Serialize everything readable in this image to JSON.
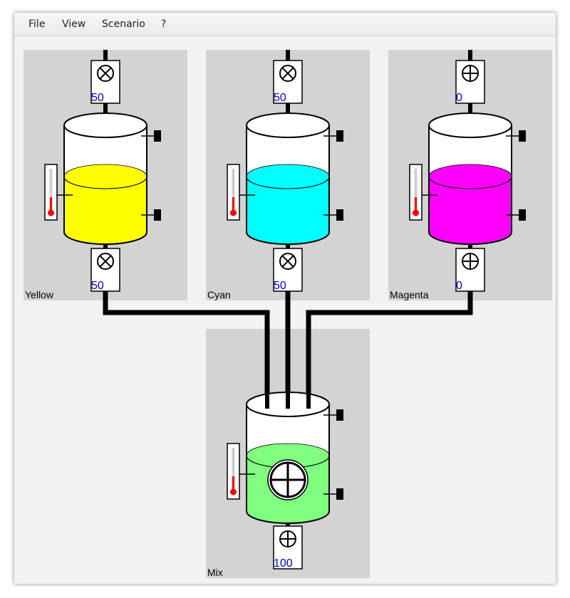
{
  "menu": {
    "file": "File",
    "view": "View",
    "scenario": "Scenario",
    "help": "?"
  },
  "units": {
    "yellow": {
      "label": "Yellow",
      "color": "#ffff00",
      "inlet_valve": {
        "state": "closed",
        "value": "50"
      },
      "outlet_valve": {
        "state": "closed",
        "value": "50"
      }
    },
    "cyan": {
      "label": "Cyan",
      "color": "#00ffff",
      "inlet_valve": {
        "state": "closed",
        "value": "50"
      },
      "outlet_valve": {
        "state": "closed",
        "value": "50"
      }
    },
    "magenta": {
      "label": "Magenta",
      "color": "#ff00ff",
      "inlet_valve": {
        "state": "open",
        "value": "0"
      },
      "outlet_valve": {
        "state": "open",
        "value": "0"
      }
    },
    "mix": {
      "label": "Mix",
      "color": "#80ff80",
      "mixer_state": "open",
      "outlet_valve": {
        "state": "open",
        "value": "100"
      }
    }
  },
  "colors": {
    "panel": "#d3d3d3",
    "value_text": "#0000cc",
    "thermo_bulb": "#ff0000"
  }
}
